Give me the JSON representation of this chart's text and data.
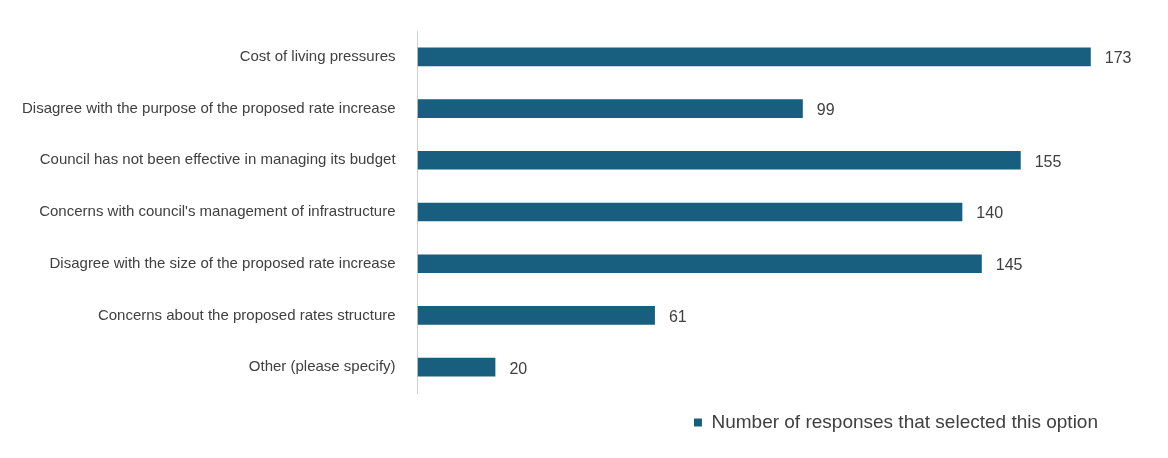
{
  "chart_data": {
    "type": "bar",
    "orientation": "horizontal",
    "categories": [
      "Cost of living pressures",
      "Disagree with the purpose of the proposed rate increase",
      "Council has not been effective in managing its budget",
      "Concerns with council's management of infrastructure",
      "Disagree with the size of the proposed rate increase",
      "Concerns about the proposed rates structure",
      "Other (please specify)"
    ],
    "series": [
      {
        "name": "Number of responses that selected this option",
        "color": "#175e7f",
        "values": [
          173,
          99,
          155,
          140,
          145,
          61,
          20
        ]
      }
    ],
    "data_labels": true,
    "legend": "bottom"
  }
}
